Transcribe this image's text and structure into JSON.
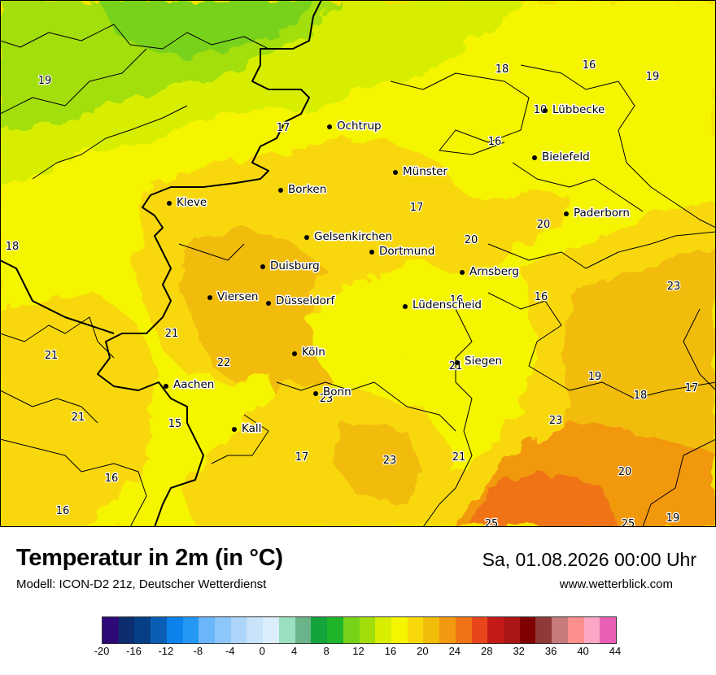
{
  "map": {
    "cities": [
      {
        "name": "Ochtrup"
      },
      {
        "name": "Lübbecke"
      },
      {
        "name": "Bielefeld"
      },
      {
        "name": "Münster"
      },
      {
        "name": "Borken"
      },
      {
        "name": "Kleve"
      },
      {
        "name": "Paderborn"
      },
      {
        "name": "Gelsenkirchen"
      },
      {
        "name": "Dortmund"
      },
      {
        "name": "Duisburg"
      },
      {
        "name": "Arnsberg"
      },
      {
        "name": "Viersen"
      },
      {
        "name": "Düsseldorf"
      },
      {
        "name": "Lüdenscheid"
      },
      {
        "name": "Köln"
      },
      {
        "name": "Siegen"
      },
      {
        "name": "Aachen"
      },
      {
        "name": "Bonn"
      },
      {
        "name": "Kall"
      }
    ],
    "values": [
      "19",
      "18",
      "16",
      "19",
      "17",
      "16",
      "17",
      "20",
      "20",
      "18",
      "23",
      "16",
      "21",
      "21",
      "22",
      "21",
      "19",
      "18",
      "17",
      "23",
      "21",
      "16",
      "21",
      "23",
      "17",
      "20",
      "25",
      "25",
      "19",
      "16",
      "15",
      "16",
      "23",
      "16",
      "10"
    ]
  },
  "footer": {
    "title": "Temperatur in 2m (in °C)",
    "subtitle": "Modell: ICON-D2 21z, Deutscher Wetterdienst",
    "datetime": "Sa, 01.08.2026 00:00 Uhr",
    "website": "www.wetterblick.com"
  },
  "scale": {
    "colors": [
      "#2e0a78",
      "#0c2d6e",
      "#063f85",
      "#0a5fb5",
      "#0b83ec",
      "#2598f5",
      "#6bb6fa",
      "#8cc6fb",
      "#aed6fb",
      "#c9e3fb",
      "#dcedfc",
      "#9adfc0",
      "#6bb48a",
      "#15a33c",
      "#1fb42a",
      "#78d21a",
      "#a3de0c",
      "#d7ee00",
      "#f5f500",
      "#f8d80a",
      "#f2bc0a",
      "#f29811",
      "#f07314",
      "#e8461a",
      "#c41a1a",
      "#aa1515",
      "#7f0000",
      "#8e3a3a",
      "#c77b7b",
      "#ff8e8e",
      "#fca7c5",
      "#e860b4"
    ],
    "ticks": [
      "-20",
      "-16",
      "-12",
      "-8",
      "-4",
      "0",
      "4",
      "8",
      "12",
      "16",
      "20",
      "24",
      "28",
      "32",
      "36",
      "40",
      "44"
    ]
  }
}
